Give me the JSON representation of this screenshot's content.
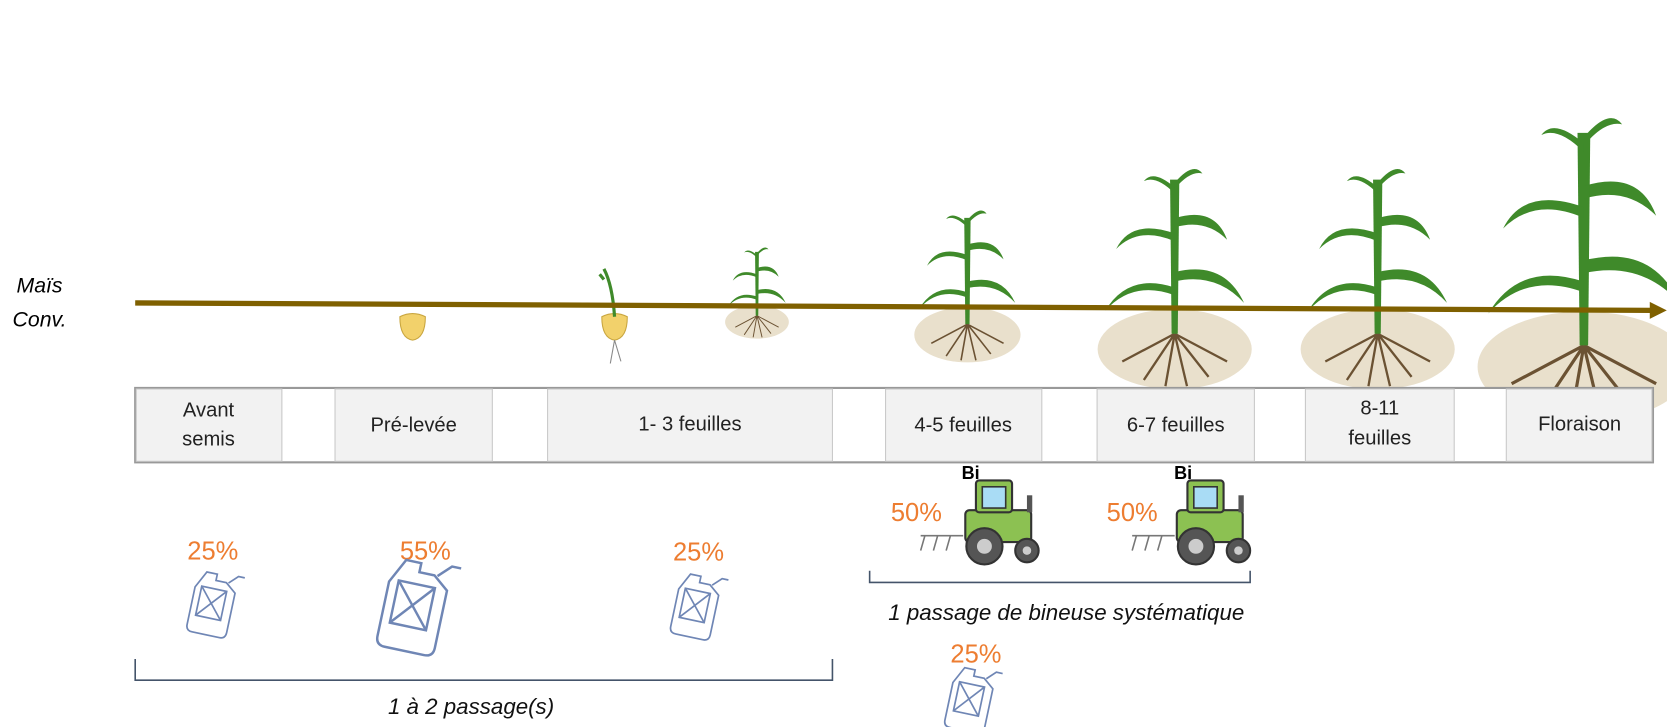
{
  "row_label": [
    "Maïs",
    "Conv."
  ],
  "stages": [
    {
      "lines": [
        "Avant",
        "semis"
      ]
    },
    {
      "lines": [
        "Pré-levée"
      ]
    },
    {
      "lines": [
        "1- 3 feuilles"
      ]
    },
    {
      "lines": [
        "4-5 feuilles"
      ]
    },
    {
      "lines": [
        "6-7 feuilles"
      ]
    },
    {
      "lines": [
        "8-11",
        "feuilles"
      ]
    },
    {
      "lines": [
        "Floraison"
      ]
    }
  ],
  "herbicide": [
    {
      "percent": "25%"
    },
    {
      "percent": "55%"
    },
    {
      "percent": "25%"
    },
    {
      "percent": "25%"
    }
  ],
  "hoeing": [
    {
      "tool": "Bi",
      "percent": "50%"
    },
    {
      "tool": "Bi",
      "percent": "50%"
    }
  ],
  "brackets": {
    "hoeing": "1 passage de bineuse systématique",
    "herbicide": "1 à 2 passage(s)"
  }
}
